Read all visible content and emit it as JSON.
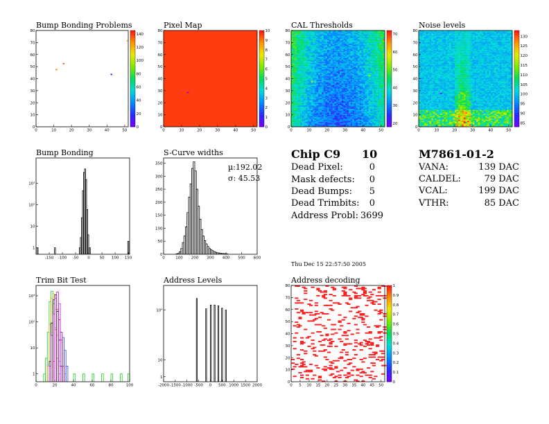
{
  "chip": {
    "name": "Chip C9",
    "number": "10",
    "rows": [
      {
        "label": "Dead Pixel:",
        "value": "0"
      },
      {
        "label": "Mask defects:",
        "value": "0"
      },
      {
        "label": "Dead Bumps:",
        "value": "5"
      },
      {
        "label": "Dead Trimbits:",
        "value": "0"
      },
      {
        "label": "Address Probl:",
        "value": "3699"
      }
    ]
  },
  "module": {
    "name": "M7861-01-2",
    "rows": [
      {
        "label": "VANA:",
        "value": "139 DAC"
      },
      {
        "label": "CALDEL:",
        "value": "79 DAC"
      },
      {
        "label": "VCAL:",
        "value": "199 DAC"
      },
      {
        "label": "VTHR:",
        "value": "85 DAC"
      }
    ]
  },
  "timestamp": "Thu Dec 15 22:57:50 2005",
  "colors": {
    "hot": "#ff1f1f",
    "cold": "#4b00ff",
    "green": "#22cc22",
    "axis": "#000000"
  },
  "chart_data": [
    {
      "id": "bump-map",
      "type": "heatmap",
      "title": "Bump Bonding Problems",
      "xlim": [
        0,
        52
      ],
      "ylim": [
        0,
        80
      ],
      "xticks": [
        "0",
        "10",
        "20",
        "30",
        "40",
        "50"
      ],
      "yticks": [
        "0",
        "10",
        "20",
        "30",
        "40",
        "50",
        "60",
        "70",
        "80"
      ],
      "zlim": [
        0,
        145
      ],
      "zticks": [
        "0",
        "20",
        "40",
        "60",
        "80",
        "100",
        "120",
        "140"
      ],
      "fill": "empty",
      "cells": [
        [
          11,
          47,
          130
        ],
        [
          15,
          52,
          135
        ],
        [
          42,
          43,
          10
        ],
        [
          51,
          71,
          120
        ]
      ]
    },
    {
      "id": "pixel-map",
      "type": "heatmap",
      "title": "Pixel Map",
      "xlim": [
        0,
        52
      ],
      "ylim": [
        0,
        80
      ],
      "xticks": [
        "0",
        "10",
        "20",
        "30",
        "40",
        "50"
      ],
      "yticks": [
        "0",
        "10",
        "20",
        "30",
        "40",
        "50",
        "60",
        "70",
        "80"
      ],
      "zlim": [
        0,
        10
      ],
      "zticks": [
        "0",
        "1",
        "2",
        "3",
        "4",
        "5",
        "6",
        "7",
        "8",
        "9",
        "10"
      ],
      "fill": "uniform",
      "fill_value": 9.6,
      "cells": [
        [
          13,
          28,
          0
        ]
      ]
    },
    {
      "id": "cal-thresholds",
      "type": "heatmap",
      "title": "CAL Thresholds",
      "xlim": [
        0,
        52
      ],
      "ylim": [
        0,
        80
      ],
      "xticks": [
        "0",
        "10",
        "20",
        "30",
        "40",
        "50"
      ],
      "yticks": [
        "0",
        "10",
        "20",
        "30",
        "40",
        "50",
        "60",
        "70",
        "80"
      ],
      "zlim": [
        18,
        72
      ],
      "zticks": [
        "20",
        "30",
        "40",
        "50",
        "60",
        "70"
      ],
      "fill": "threshold",
      "cells": [
        [
          51,
          72,
          68
        ],
        [
          43,
          42,
          55
        ],
        [
          11,
          37,
          60
        ]
      ]
    },
    {
      "id": "noise-levels",
      "type": "heatmap",
      "title": "Noise levels",
      "xlim": [
        0,
        52
      ],
      "ylim": [
        0,
        80
      ],
      "xticks": [
        "0",
        "10",
        "20",
        "30",
        "40",
        "50"
      ],
      "yticks": [
        "0",
        "10",
        "20",
        "30",
        "40",
        "50",
        "60",
        "70",
        "80"
      ],
      "zlim": [
        83,
        133
      ],
      "zticks": [
        "85",
        "90",
        "95",
        "100",
        "105",
        "110",
        "115",
        "120",
        "125",
        "130"
      ],
      "fill": "noise",
      "cells": [
        [
          12,
          27,
          84
        ]
      ]
    },
    {
      "id": "bump-bonding",
      "type": "histogram",
      "title": "Bump Bonding",
      "xlim": [
        -200,
        155
      ],
      "ylog": true,
      "ylim": [
        0.5,
        15000
      ],
      "xticks": [
        {
          "v": -150,
          "l": "-150"
        },
        {
          "v": -100,
          "l": "-100"
        },
        {
          "v": -50,
          "l": "-50"
        },
        {
          "v": 0,
          "l": "0"
        },
        {
          "v": 50,
          "l": "50"
        },
        {
          "v": 100,
          "l": "100"
        },
        {
          "v": 150,
          "l": "150"
        }
      ],
      "yticks": [
        {
          "v": 1,
          "l": "1"
        },
        {
          "v": 10,
          "l": "10"
        },
        {
          "v": 100,
          "l": "10²"
        },
        {
          "v": 1000,
          "l": "10³"
        }
      ],
      "series": [
        {
          "bins": [
            [
              -196,
              -192,
              1
            ],
            [
              -130,
              -126,
              1
            ],
            [
              -36,
              -32,
              1
            ],
            [
              -32,
              -28,
              3
            ],
            [
              -28,
              -24,
              25
            ],
            [
              -24,
              -20,
              450
            ],
            [
              -20,
              -16,
              3200
            ],
            [
              -16,
              -12,
              4600
            ],
            [
              -12,
              -8,
              1500
            ],
            [
              -8,
              -4,
              60
            ],
            [
              -4,
              0,
              4
            ],
            [
              2,
              6,
              1
            ],
            [
              148,
              152,
              2
            ]
          ]
        }
      ]
    },
    {
      "id": "s-curve-widths",
      "type": "histogram",
      "title": "S-Curve widths",
      "xlim": [
        0,
        600
      ],
      "ylim": [
        0,
        370
      ],
      "xticks": [
        {
          "v": 0,
          "l": "0"
        },
        {
          "v": 100,
          "l": "100"
        },
        {
          "v": 200,
          "l": "200"
        },
        {
          "v": 300,
          "l": "300"
        },
        {
          "v": 400,
          "l": "400"
        },
        {
          "v": 500,
          "l": "500"
        },
        {
          "v": 600,
          "l": "600"
        }
      ],
      "yticks": [
        {
          "v": 0,
          "l": "0"
        },
        {
          "v": 50,
          "l": "50"
        },
        {
          "v": 100,
          "l": "100"
        },
        {
          "v": 150,
          "l": "150"
        },
        {
          "v": 200,
          "l": "200"
        },
        {
          "v": 250,
          "l": "250"
        },
        {
          "v": 300,
          "l": "300"
        },
        {
          "v": 350,
          "l": "350"
        }
      ],
      "stats": [
        "µ:192.02",
        "σ: 45.53"
      ],
      "series": [
        {
          "bins": [
            [
              80,
              90,
              2
            ],
            [
              90,
              100,
              3
            ],
            [
              100,
              110,
              10
            ],
            [
              110,
              120,
              22
            ],
            [
              120,
              130,
              45
            ],
            [
              130,
              140,
              70
            ],
            [
              140,
              150,
              105
            ],
            [
              150,
              160,
              160
            ],
            [
              160,
              170,
              220
            ],
            [
              170,
              180,
              270
            ],
            [
              180,
              190,
              330
            ],
            [
              190,
              200,
              355
            ],
            [
              200,
              210,
              320
            ],
            [
              210,
              220,
              250
            ],
            [
              220,
              230,
              185
            ],
            [
              230,
              240,
              135
            ],
            [
              240,
              250,
              95
            ],
            [
              250,
              260,
              70
            ],
            [
              260,
              270,
              52
            ],
            [
              270,
              280,
              40
            ],
            [
              280,
              290,
              30
            ],
            [
              290,
              300,
              22
            ],
            [
              300,
              310,
              18
            ],
            [
              310,
              320,
              14
            ],
            [
              320,
              330,
              10
            ],
            [
              330,
              340,
              8
            ],
            [
              340,
              350,
              6
            ],
            [
              350,
              360,
              5
            ],
            [
              360,
              370,
              4
            ],
            [
              370,
              380,
              3
            ],
            [
              380,
              390,
              3
            ],
            [
              390,
              400,
              2
            ],
            [
              400,
              410,
              2
            ]
          ]
        }
      ]
    },
    {
      "id": "trim-bit-test",
      "type": "histogram",
      "title": "Trim Bit Test",
      "xlim": [
        0,
        100
      ],
      "ylog": true,
      "ylim": [
        0.5,
        2500
      ],
      "xticks": [
        {
          "v": 0,
          "l": "0"
        },
        {
          "v": 20,
          "l": "20"
        },
        {
          "v": 40,
          "l": "40"
        },
        {
          "v": 60,
          "l": "60"
        },
        {
          "v": 80,
          "l": "80"
        },
        {
          "v": 100,
          "l": "100"
        }
      ],
      "yticks": [
        {
          "v": 1,
          "l": "1"
        },
        {
          "v": 10,
          "l": "10"
        },
        {
          "v": 100,
          "l": "10²"
        },
        {
          "v": 1000,
          "l": "10³"
        }
      ],
      "series": [
        {
          "color": "#22cc22",
          "bins": [
            [
              8,
              10,
              1
            ],
            [
              10,
              12,
              4
            ],
            [
              12,
              14,
              40
            ],
            [
              14,
              16,
              600
            ],
            [
              16,
              18,
              1500
            ],
            [
              18,
              20,
              500
            ],
            [
              20,
              22,
              60
            ],
            [
              22,
              24,
              4
            ],
            [
              24,
              26,
              1
            ],
            [
              30,
              32,
              1
            ],
            [
              40,
              42,
              1
            ],
            [
              50,
              52,
              1
            ],
            [
              60,
              62,
              1
            ],
            [
              70,
              72,
              1
            ],
            [
              80,
              82,
              1
            ],
            [
              90,
              92,
              1
            ],
            [
              98,
              100,
              1
            ]
          ]
        },
        {
          "color": "#d4b000",
          "bins": [
            [
              12,
              14,
              2
            ],
            [
              14,
              16,
              80
            ],
            [
              16,
              18,
              800
            ],
            [
              18,
              20,
              1200
            ],
            [
              20,
              22,
              300
            ],
            [
              22,
              24,
              30
            ],
            [
              24,
              26,
              2
            ]
          ]
        },
        {
          "color": "#000000",
          "bins": [
            [
              14,
              16,
              3
            ],
            [
              16,
              18,
              90
            ],
            [
              18,
              20,
              700
            ],
            [
              20,
              22,
              1100
            ],
            [
              22,
              24,
              250
            ],
            [
              24,
              26,
              20
            ],
            [
              26,
              28,
              2
            ]
          ]
        },
        {
          "color": "#e01010",
          "bins": [
            [
              18,
              20,
              3
            ],
            [
              20,
              22,
              50
            ],
            [
              22,
              24,
              300
            ],
            [
              24,
              26,
              120
            ],
            [
              26,
              28,
              20
            ],
            [
              28,
              30,
              2
            ]
          ]
        },
        {
          "color": "#3344ff",
          "bins": [
            [
              24,
              26,
              3
            ],
            [
              26,
              28,
              40
            ],
            [
              28,
              30,
              25
            ],
            [
              30,
              32,
              8
            ],
            [
              32,
              34,
              2
            ]
          ]
        },
        {
          "color": "#bb22cc",
          "bins": [
            [
              14,
              16,
              2
            ],
            [
              16,
              18,
              30
            ],
            [
              18,
              20,
              200
            ],
            [
              20,
              22,
              800
            ],
            [
              22,
              24,
              1400
            ],
            [
              24,
              26,
              500
            ],
            [
              26,
              28,
              40
            ],
            [
              28,
              30,
              2
            ]
          ]
        }
      ]
    },
    {
      "id": "address-levels",
      "type": "histogram",
      "title": "Address Levels",
      "xlim": [
        -2000,
        2000
      ],
      "ylog": true,
      "ylim": [
        0.5,
        300000
      ],
      "xticks": [
        {
          "v": -2000,
          "l": "-2000"
        },
        {
          "v": -1500,
          "l": "-1500"
        },
        {
          "v": -1000,
          "l": "-1000"
        },
        {
          "v": -500,
          "l": "-500"
        },
        {
          "v": 0,
          "l": "0"
        },
        {
          "v": 500,
          "l": "500"
        },
        {
          "v": 1000,
          "l": "1000"
        },
        {
          "v": 1500,
          "l": "1500"
        },
        {
          "v": 2000,
          "l": "2000"
        }
      ],
      "yticks": [
        {
          "v": 1,
          "l": "1"
        },
        {
          "v": 10,
          "l": "10"
        },
        {
          "v": 10000,
          "l": "10⁴"
        }
      ],
      "series": [
        {
          "bins": [
            [
              -600,
              -560,
              50000
            ],
            [
              -200,
              -160,
              12000
            ],
            [
              0,
              40,
              20000
            ],
            [
              160,
              200,
              20000
            ],
            [
              320,
              360,
              18000
            ],
            [
              480,
              520,
              13000
            ],
            [
              640,
              680,
              10000
            ]
          ]
        }
      ]
    },
    {
      "id": "address-decoding",
      "type": "heatmap",
      "title": "Address decoding",
      "xlim": [
        0,
        52
      ],
      "ylim": [
        0,
        80
      ],
      "xticks": [
        "0",
        "5",
        "10",
        "15",
        "20",
        "25",
        "30",
        "35",
        "40",
        "45",
        "50"
      ],
      "yticks": [
        "0",
        "10",
        "20",
        "30",
        "40",
        "50",
        "60",
        "70",
        "80"
      ],
      "zlim": [
        0,
        1
      ],
      "zticks": [
        "0",
        "0.1",
        "0.2",
        "0.3",
        "0.4",
        "0.5",
        "0.6",
        "0.7",
        "0.8",
        "0.9",
        "1"
      ],
      "fill": "random-binary",
      "fill_fraction": 0.09
    }
  ]
}
